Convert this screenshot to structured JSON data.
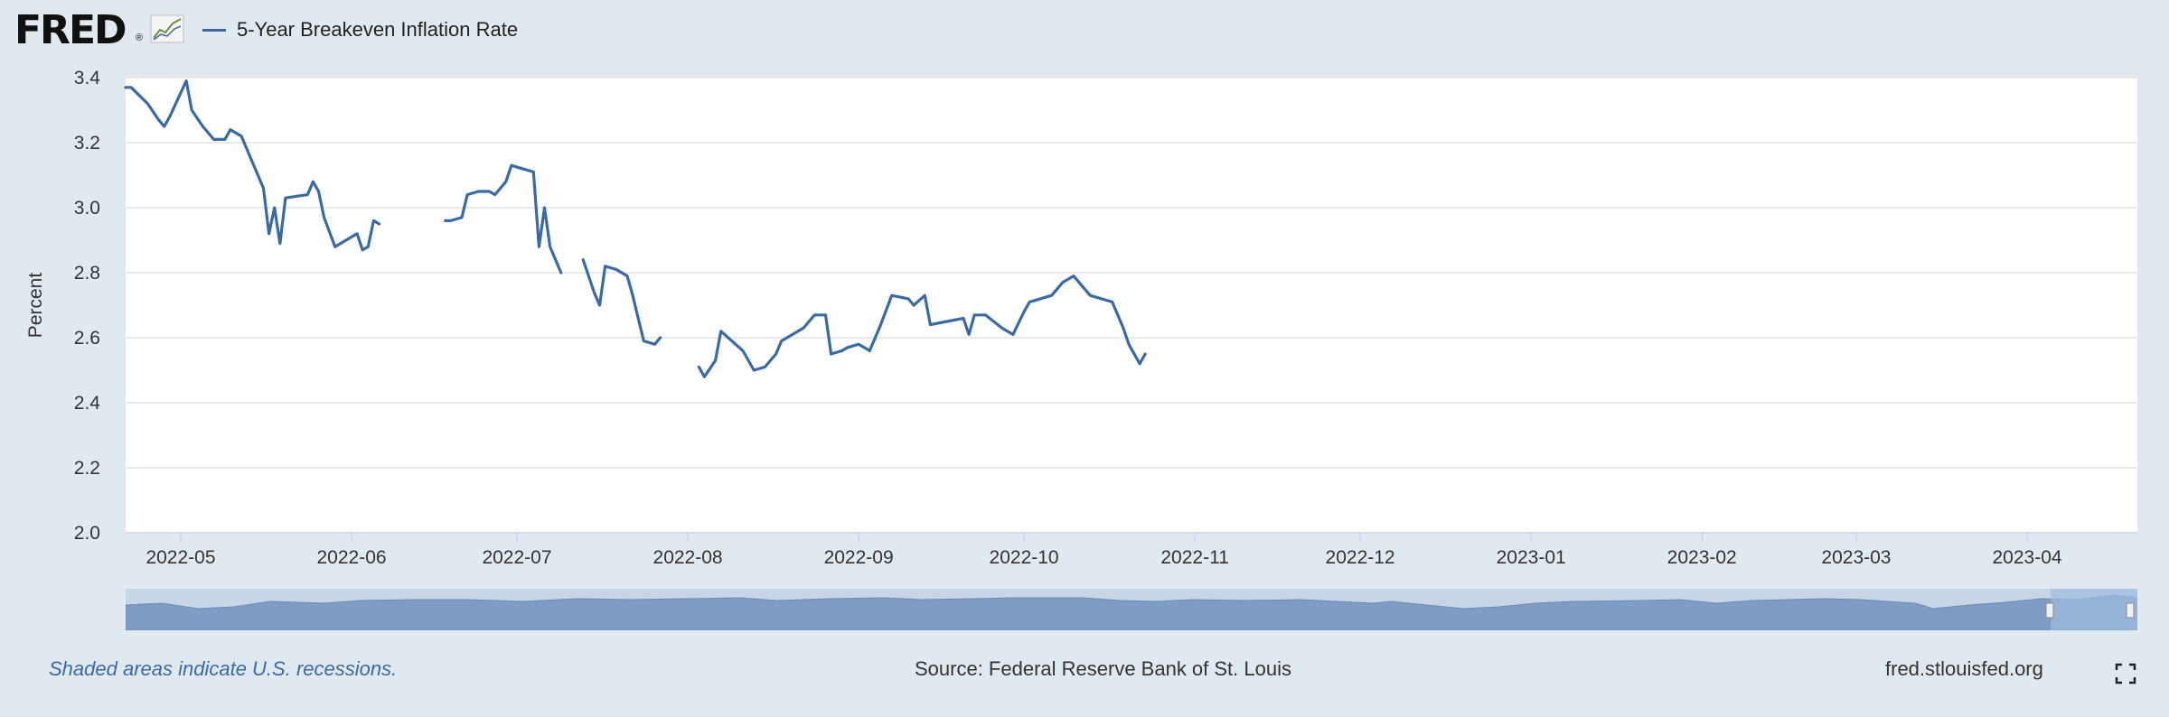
{
  "header": {
    "logo_text": "FRED",
    "logo_reg": "®",
    "legend_label": "5-Year Breakeven Inflation Rate"
  },
  "colors": {
    "line": "#3a6aa4",
    "grid": "#e3e3e3",
    "page_bg": "#e1e9f0",
    "navigator_fill": "#7f9dc4"
  },
  "footer": {
    "recession_note": "Shaded areas indicate U.S. recessions.",
    "source": "Source: Federal Reserve Bank of St. Louis",
    "site": "fred.stlouisfed.org"
  },
  "icons": {
    "logo_chart": "line-chart-icon",
    "fullscreen": "fullscreen-icon"
  },
  "chart_data": {
    "type": "line",
    "title": "",
    "xlabel": "",
    "ylabel": "Percent",
    "ylim": [
      2.0,
      3.4
    ],
    "yticks": [
      "2.0",
      "2.2",
      "2.4",
      "2.6",
      "2.8",
      "3.0",
      "3.2",
      "3.4"
    ],
    "xlim": [
      "2022-04-21",
      "2023-04-21"
    ],
    "xticks": [
      "2022-05",
      "2022-06",
      "2022-07",
      "2022-08",
      "2022-09",
      "2022-10",
      "2022-11",
      "2022-12",
      "2023-01",
      "2023-02",
      "2023-03",
      "2023-04"
    ],
    "grid": "horizontal",
    "legend": "top-left",
    "series": [
      {
        "name": "5-Year Breakeven Inflation Rate",
        "segments": [
          [
            [
              "2022-04-21",
              3.37
            ],
            [
              "2022-04-22",
              3.37
            ],
            [
              "2022-04-25",
              3.32
            ],
            [
              "2022-04-27",
              3.27
            ],
            [
              "2022-04-28",
              3.25
            ],
            [
              "2022-04-29",
              3.28
            ],
            [
              "2022-05-02",
              3.39
            ],
            [
              "2022-05-03",
              3.3
            ],
            [
              "2022-05-05",
              3.25
            ],
            [
              "2022-05-07",
              3.21
            ],
            [
              "2022-05-09",
              3.21
            ],
            [
              "2022-05-10",
              3.24
            ],
            [
              "2022-05-12",
              3.22
            ],
            [
              "2022-05-14",
              3.14
            ],
            [
              "2022-05-16",
              3.06
            ],
            [
              "2022-05-17",
              2.92
            ],
            [
              "2022-05-18",
              3.0
            ],
            [
              "2022-05-19",
              2.89
            ],
            [
              "2022-05-20",
              3.03
            ],
            [
              "2022-05-24",
              3.04
            ],
            [
              "2022-05-25",
              3.08
            ],
            [
              "2022-05-26",
              3.05
            ],
            [
              "2022-05-27",
              2.97
            ],
            [
              "2022-05-29",
              2.88
            ],
            [
              "2022-06-02",
              2.92
            ],
            [
              "2022-06-03",
              2.87
            ],
            [
              "2022-06-04",
              2.88
            ],
            [
              "2022-06-05",
              2.96
            ],
            [
              "2022-06-06",
              2.95
            ]
          ],
          [
            [
              "2022-06-18",
              2.96
            ],
            [
              "2022-06-19",
              2.96
            ],
            [
              "2022-06-21",
              2.97
            ],
            [
              "2022-06-22",
              3.04
            ],
            [
              "2022-06-24",
              3.05
            ],
            [
              "2022-06-26",
              3.05
            ],
            [
              "2022-06-27",
              3.04
            ],
            [
              "2022-06-29",
              3.08
            ],
            [
              "2022-06-30",
              3.13
            ],
            [
              "2022-07-02",
              3.12
            ],
            [
              "2022-07-04",
              3.11
            ],
            [
              "2022-07-05",
              2.88
            ],
            [
              "2022-07-06",
              3.0
            ],
            [
              "2022-07-07",
              2.88
            ],
            [
              "2022-07-09",
              2.8
            ]
          ],
          [
            [
              "2022-07-13",
              2.84
            ],
            [
              "2022-07-15",
              2.74
            ],
            [
              "2022-07-16",
              2.7
            ],
            [
              "2022-07-17",
              2.82
            ],
            [
              "2022-07-19",
              2.81
            ],
            [
              "2022-07-21",
              2.79
            ],
            [
              "2022-07-22",
              2.73
            ],
            [
              "2022-07-24",
              2.59
            ],
            [
              "2022-07-26",
              2.58
            ],
            [
              "2022-07-27",
              2.6
            ]
          ],
          [
            [
              "2022-08-03",
              2.51
            ],
            [
              "2022-08-04",
              2.48
            ],
            [
              "2022-08-06",
              2.53
            ],
            [
              "2022-08-07",
              2.62
            ],
            [
              "2022-08-09",
              2.59
            ],
            [
              "2022-08-11",
              2.56
            ],
            [
              "2022-08-13",
              2.5
            ],
            [
              "2022-08-15",
              2.51
            ],
            [
              "2022-08-17",
              2.55
            ],
            [
              "2022-08-18",
              2.59
            ],
            [
              "2022-08-21",
              2.62
            ],
            [
              "2022-08-22",
              2.63
            ],
            [
              "2022-08-24",
              2.67
            ],
            [
              "2022-08-26",
              2.67
            ],
            [
              "2022-08-27",
              2.55
            ],
            [
              "2022-08-29",
              2.56
            ],
            [
              "2022-08-30",
              2.57
            ],
            [
              "2022-09-01",
              2.58
            ],
            [
              "2022-09-03",
              2.56
            ],
            [
              "2022-09-05",
              2.64
            ],
            [
              "2022-09-07",
              2.73
            ],
            [
              "2022-09-10",
              2.72
            ],
            [
              "2022-09-11",
              2.7
            ],
            [
              "2022-09-13",
              2.73
            ],
            [
              "2022-09-14",
              2.64
            ],
            [
              "2022-09-17",
              2.65
            ],
            [
              "2022-09-20",
              2.66
            ],
            [
              "2022-09-21",
              2.61
            ],
            [
              "2022-09-22",
              2.67
            ],
            [
              "2022-09-24",
              2.67
            ],
            [
              "2022-09-27",
              2.63
            ],
            [
              "2022-09-29",
              2.61
            ],
            [
              "2022-10-01",
              2.68
            ],
            [
              "2022-10-02",
              2.71
            ],
            [
              "2022-10-04",
              2.72
            ],
            [
              "2022-10-06",
              2.73
            ],
            [
              "2022-10-08",
              2.77
            ],
            [
              "2022-10-10",
              2.79
            ],
            [
              "2022-10-11",
              2.77
            ],
            [
              "2022-10-13",
              2.73
            ],
            [
              "2022-10-15",
              2.72
            ],
            [
              "2022-10-17",
              2.71
            ],
            [
              "2022-10-19",
              2.63
            ],
            [
              "2022-10-20",
              2.58
            ],
            [
              "2022-10-22",
              2.52
            ],
            [
              "2022-10-23",
              2.55
            ]
          ]
        ]
      }
    ]
  }
}
